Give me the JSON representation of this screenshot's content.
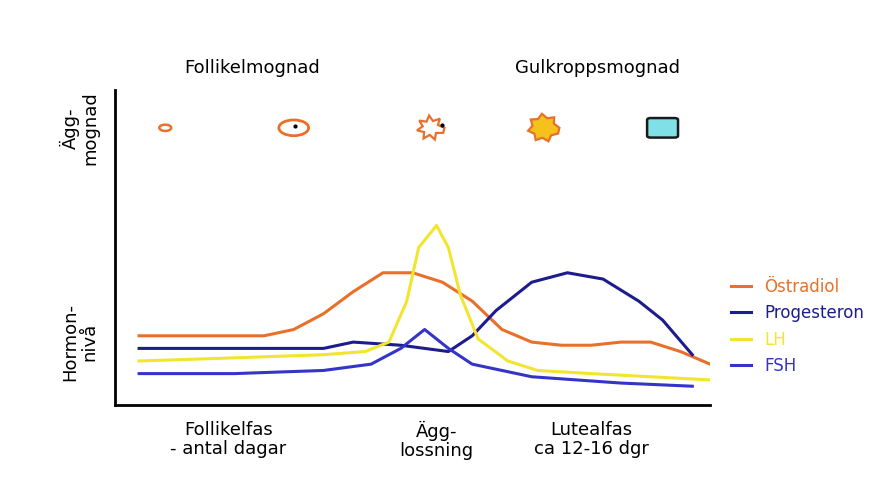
{
  "chart_data": {
    "type": "line",
    "top_labels": [
      {
        "label": "Follikelmognad",
        "x": 23
      },
      {
        "label": "Gulkroppsmognad",
        "x": 81
      }
    ],
    "x_labels": [
      {
        "label": "Follikelfas\n- antal dagar",
        "x": 19
      },
      {
        "label": "Ägg-\nlossning",
        "x": 54
      },
      {
        "label": "Lutealfas\nca 12-16 dgr",
        "x": 80
      }
    ],
    "y_labels": [
      {
        "label": "Ägg-\nmognad",
        "y": 88
      },
      {
        "label": "Hormon-\nnivå",
        "y": 20
      }
    ],
    "xlim": [
      0,
      100
    ],
    "ylim": [
      0,
      100
    ],
    "xticks": [],
    "yticks": [],
    "tick_labels": false,
    "legend": "right",
    "series": [
      {
        "name": "Östradiol",
        "color": "#e8702a",
        "x": [
          4,
          15,
          25,
          30,
          35,
          40,
          45,
          50,
          55,
          60,
          65,
          70,
          75,
          80,
          85,
          90,
          95,
          100
        ],
        "values": [
          22,
          22,
          22,
          24,
          29,
          36,
          42,
          42,
          39,
          33,
          24,
          20,
          19,
          19,
          20,
          20,
          17,
          13
        ]
      },
      {
        "name": "Progesteron",
        "color": "#1c1c8c",
        "x": [
          4,
          20,
          35,
          40,
          48,
          56,
          60,
          64,
          70,
          76,
          82,
          88,
          92,
          97
        ],
        "values": [
          18,
          18,
          18,
          20,
          19,
          17,
          22,
          30,
          39,
          42,
          40,
          33,
          27,
          16
        ]
      },
      {
        "name": "LH",
        "color": "#f2e530",
        "x": [
          4,
          20,
          35,
          42,
          46,
          49,
          51,
          54,
          56,
          58,
          61,
          66,
          71,
          80,
          90,
          100
        ],
        "values": [
          14,
          15,
          16,
          17,
          20,
          33,
          50,
          57,
          50,
          35,
          21,
          14,
          11,
          10,
          9,
          8
        ]
      },
      {
        "name": "FSH",
        "color": "#3434c8",
        "x": [
          4,
          20,
          35,
          43,
          48,
          52,
          56,
          60,
          70,
          85,
          97
        ],
        "values": [
          10,
          10,
          11,
          13,
          18,
          24,
          18,
          13,
          9,
          7,
          6
        ]
      }
    ]
  }
}
